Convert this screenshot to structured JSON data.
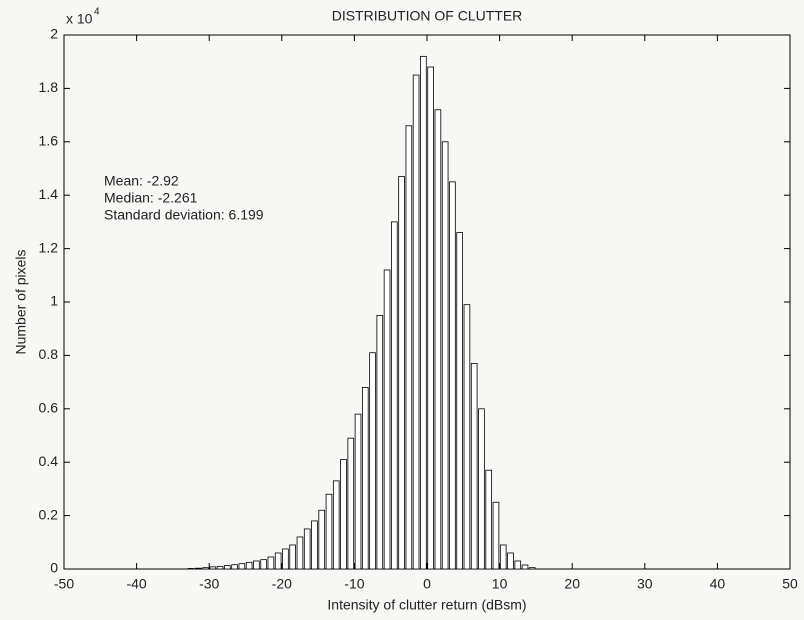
{
  "chart_data": {
    "type": "histogram",
    "title": "DISTRIBUTION OF CLUTTER",
    "x_label": "Intensity of clutter return (dBsm)",
    "y_label": "Number of pixels",
    "y_multiplier": "x 10",
    "y_multiplier_exponent": "4",
    "annotations": [
      "Mean: -2.92",
      "Median: -2.261",
      "Standard deviation: 6.199"
    ],
    "bins": [
      -33,
      -32,
      -31,
      -30,
      -29,
      -28,
      -27,
      -26,
      -25,
      -24,
      -23,
      -22,
      -21,
      -20,
      -19,
      -18,
      -17,
      -16,
      -15,
      -14,
      -13,
      -12,
      -11,
      -10,
      -9,
      -8,
      -7,
      -6,
      -5,
      -4,
      -3,
      -2,
      -1,
      0,
      1,
      2,
      3,
      4,
      5,
      6,
      7,
      8,
      9,
      10,
      11,
      12,
      13,
      14,
      15
    ],
    "values": [
      0.002,
      0.003,
      0.005,
      0.008,
      0.01,
      0.013,
      0.016,
      0.02,
      0.025,
      0.03,
      0.035,
      0.045,
      0.06,
      0.075,
      0.09,
      0.12,
      0.15,
      0.18,
      0.22,
      0.28,
      0.33,
      0.41,
      0.49,
      0.58,
      0.68,
      0.81,
      0.95,
      1.12,
      1.3,
      1.47,
      1.66,
      1.85,
      1.92,
      1.88,
      1.72,
      1.6,
      1.45,
      1.26,
      0.99,
      0.77,
      0.6,
      0.37,
      0.25,
      0.09,
      0.06,
      0.03,
      0.015,
      0.005
    ],
    "color": "#ffffff",
    "edge_color": "#000000",
    "xlim": [
      -50,
      50
    ],
    "xticks": [
      -50,
      -40,
      -30,
      -20,
      -10,
      0,
      10,
      20,
      30,
      40,
      50
    ],
    "ylim": [
      0,
      2
    ],
    "yticks": [
      0,
      0.2,
      0.4,
      0.6,
      0.8,
      1,
      1.2,
      1.4,
      1.6,
      1.8,
      2
    ],
    "grid": false
  }
}
